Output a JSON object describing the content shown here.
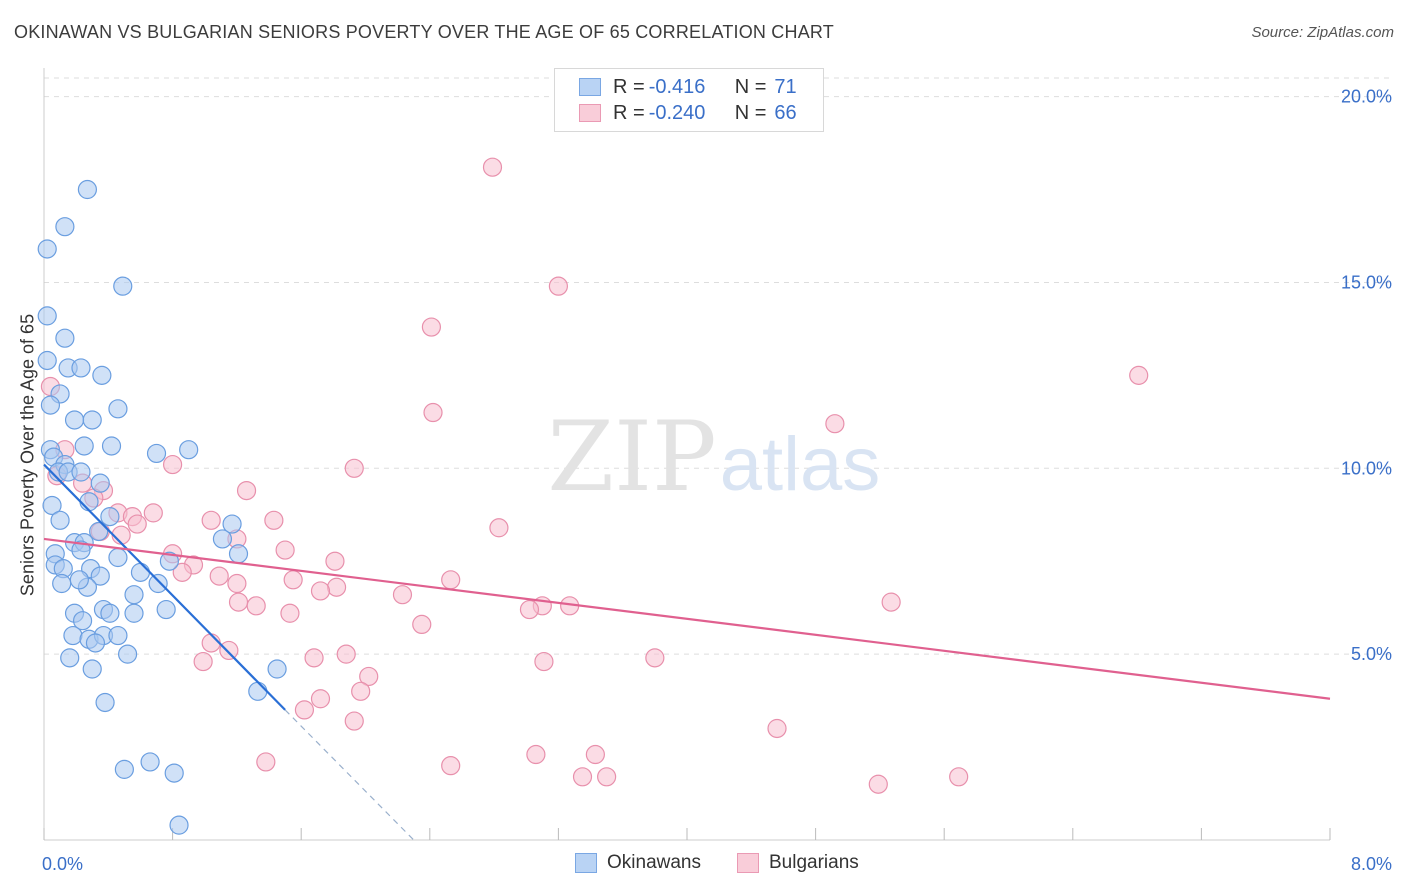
{
  "title": "OKINAWAN VS BULGARIAN SENIORS POVERTY OVER THE AGE OF 65 CORRELATION CHART",
  "source": "Source: ZipAtlas.com",
  "watermark": {
    "zip": "ZIP",
    "atlas": "atlas"
  },
  "legend": {
    "okinawans": {
      "r_label": "R =",
      "r_value": "-0.416",
      "n_label": "N =",
      "n_value": "71"
    },
    "bulgarians": {
      "r_label": "R =",
      "r_value": "-0.240",
      "n_label": "N =",
      "n_value": "66"
    }
  },
  "bottom_legend": {
    "okinawans": "Okinawans",
    "bulgarians": "Bulgarians"
  },
  "colors": {
    "okinawans_fill": "#aac8f0",
    "okinawans_stroke": "#6a9ee0",
    "okinawans_line": "#2a6fd6",
    "bulgarians_fill": "#f7c0d0",
    "bulgarians_stroke": "#e890ac",
    "bulgarians_line": "#e0608f",
    "axis_tick_label": "#3a6fc8",
    "grid": "#dddddd"
  },
  "chart_data": {
    "type": "scatter",
    "title": "OKINAWAN VS BULGARIAN SENIORS POVERTY OVER THE AGE OF 65 CORRELATION CHART",
    "xlabel": "",
    "ylabel": "Seniors Poverty Over the Age of 65",
    "xlim": [
      0,
      8
    ],
    "ylim": [
      0,
      20.5
    ],
    "x_tick_labels": [
      "0.0%",
      "8.0%"
    ],
    "y_ticks": [
      5,
      10,
      15,
      20
    ],
    "y_tick_labels": [
      "5.0%",
      "10.0%",
      "15.0%",
      "20.0%"
    ],
    "grid": true,
    "series": [
      {
        "name": "Okinawans",
        "points": [
          [
            0.27,
            17.5
          ],
          [
            0.13,
            16.5
          ],
          [
            0.02,
            15.9
          ],
          [
            0.49,
            14.9
          ],
          [
            0.02,
            14.1
          ],
          [
            0.13,
            13.5
          ],
          [
            0.02,
            12.9
          ],
          [
            0.15,
            12.7
          ],
          [
            0.23,
            12.7
          ],
          [
            0.36,
            12.5
          ],
          [
            0.1,
            12.0
          ],
          [
            0.04,
            11.7
          ],
          [
            0.46,
            11.6
          ],
          [
            0.19,
            11.3
          ],
          [
            0.3,
            11.3
          ],
          [
            0.25,
            10.6
          ],
          [
            0.42,
            10.6
          ],
          [
            0.9,
            10.5
          ],
          [
            0.7,
            10.4
          ],
          [
            0.04,
            10.5
          ],
          [
            0.06,
            10.3
          ],
          [
            0.13,
            10.1
          ],
          [
            0.09,
            9.9
          ],
          [
            0.15,
            9.9
          ],
          [
            0.23,
            9.9
          ],
          [
            0.35,
            9.6
          ],
          [
            0.28,
            9.1
          ],
          [
            0.05,
            9.0
          ],
          [
            0.41,
            8.7
          ],
          [
            0.1,
            8.6
          ],
          [
            1.17,
            8.5
          ],
          [
            0.34,
            8.3
          ],
          [
            1.11,
            8.1
          ],
          [
            0.19,
            8.0
          ],
          [
            0.25,
            8.0
          ],
          [
            0.23,
            7.8
          ],
          [
            0.07,
            7.7
          ],
          [
            1.21,
            7.7
          ],
          [
            0.46,
            7.6
          ],
          [
            0.78,
            7.5
          ],
          [
            0.07,
            7.4
          ],
          [
            0.12,
            7.3
          ],
          [
            0.29,
            7.3
          ],
          [
            0.35,
            7.1
          ],
          [
            0.11,
            6.9
          ],
          [
            0.71,
            6.9
          ],
          [
            0.27,
            6.8
          ],
          [
            0.56,
            6.6
          ],
          [
            0.19,
            6.1
          ],
          [
            0.37,
            6.2
          ],
          [
            0.41,
            6.1
          ],
          [
            0.76,
            6.2
          ],
          [
            0.56,
            6.1
          ],
          [
            0.24,
            5.9
          ],
          [
            0.18,
            5.5
          ],
          [
            0.28,
            5.4
          ],
          [
            0.37,
            5.5
          ],
          [
            0.46,
            5.5
          ],
          [
            0.32,
            5.3
          ],
          [
            0.16,
            4.9
          ],
          [
            0.52,
            5.0
          ],
          [
            1.45,
            4.6
          ],
          [
            0.3,
            4.6
          ],
          [
            1.33,
            4.0
          ],
          [
            0.5,
            1.9
          ],
          [
            0.66,
            2.1
          ],
          [
            0.81,
            1.8
          ],
          [
            0.84,
            0.4
          ],
          [
            0.38,
            3.7
          ],
          [
            0.22,
            7.0
          ],
          [
            0.6,
            7.2
          ]
        ]
      },
      {
        "name": "Bulgarians",
        "points": [
          [
            2.79,
            18.1
          ],
          [
            3.2,
            14.9
          ],
          [
            2.41,
            13.8
          ],
          [
            6.81,
            12.5
          ],
          [
            0.04,
            12.2
          ],
          [
            2.42,
            11.5
          ],
          [
            4.92,
            11.2
          ],
          [
            0.13,
            10.5
          ],
          [
            0.8,
            10.1
          ],
          [
            1.93,
            10.0
          ],
          [
            0.08,
            9.8
          ],
          [
            0.24,
            9.6
          ],
          [
            1.26,
            9.4
          ],
          [
            0.37,
            9.4
          ],
          [
            0.31,
            9.2
          ],
          [
            0.46,
            8.8
          ],
          [
            0.68,
            8.8
          ],
          [
            0.55,
            8.7
          ],
          [
            1.04,
            8.6
          ],
          [
            1.43,
            8.6
          ],
          [
            0.58,
            8.5
          ],
          [
            2.83,
            8.4
          ],
          [
            0.35,
            8.3
          ],
          [
            0.48,
            8.2
          ],
          [
            1.2,
            8.1
          ],
          [
            1.5,
            7.8
          ],
          [
            1.81,
            7.5
          ],
          [
            0.93,
            7.4
          ],
          [
            1.55,
            7.0
          ],
          [
            1.09,
            7.1
          ],
          [
            0.86,
            7.2
          ],
          [
            1.82,
            6.8
          ],
          [
            1.72,
            6.7
          ],
          [
            2.23,
            6.6
          ],
          [
            1.21,
            6.4
          ],
          [
            1.32,
            6.3
          ],
          [
            3.1,
            6.3
          ],
          [
            3.02,
            6.2
          ],
          [
            3.27,
            6.3
          ],
          [
            5.27,
            6.4
          ],
          [
            1.53,
            6.1
          ],
          [
            2.35,
            5.8
          ],
          [
            1.04,
            5.3
          ],
          [
            1.15,
            5.1
          ],
          [
            1.88,
            5.0
          ],
          [
            3.8,
            4.9
          ],
          [
            0.99,
            4.8
          ],
          [
            1.68,
            4.9
          ],
          [
            3.11,
            4.8
          ],
          [
            2.02,
            4.4
          ],
          [
            1.97,
            4.0
          ],
          [
            1.72,
            3.8
          ],
          [
            1.62,
            3.5
          ],
          [
            1.93,
            3.2
          ],
          [
            4.56,
            3.0
          ],
          [
            3.06,
            2.3
          ],
          [
            3.43,
            2.3
          ],
          [
            1.38,
            2.1
          ],
          [
            2.53,
            2.0
          ],
          [
            5.69,
            1.7
          ],
          [
            3.35,
            1.7
          ],
          [
            3.5,
            1.7
          ],
          [
            5.19,
            1.5
          ],
          [
            0.8,
            7.7
          ],
          [
            1.2,
            6.9
          ],
          [
            2.53,
            7.0
          ]
        ]
      }
    ],
    "trend_lines": [
      {
        "series": "Okinawans",
        "from": [
          0.0,
          10.1
        ],
        "to": [
          1.5,
          3.5
        ],
        "dashed_to": [
          2.3,
          0.0
        ]
      },
      {
        "series": "Bulgarians",
        "from": [
          0.0,
          8.1
        ],
        "to": [
          8.0,
          3.8
        ]
      }
    ]
  }
}
